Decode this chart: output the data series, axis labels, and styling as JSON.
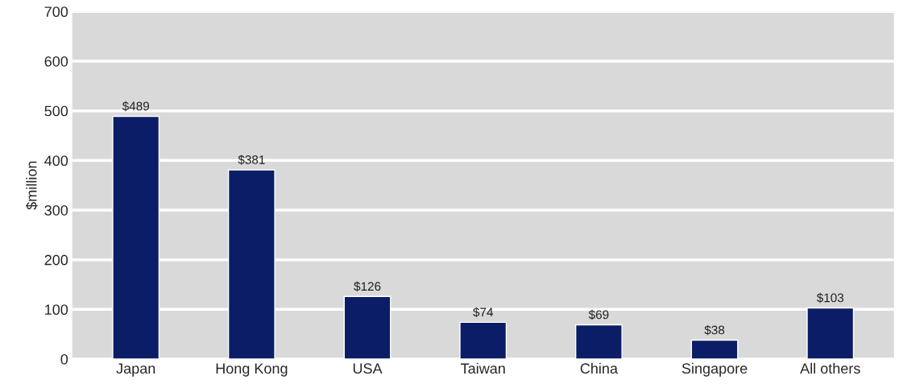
{
  "chart_data": {
    "type": "bar",
    "ylabel": "$million",
    "categories": [
      "Japan",
      "Hong Kong",
      "USA",
      "Taiwan",
      "China",
      "Singapore",
      "All others"
    ],
    "values": [
      489,
      381,
      126,
      74,
      69,
      38,
      103
    ],
    "value_labels": [
      "$489",
      "$381",
      "$126",
      "$74",
      "$69",
      "$38",
      "$103"
    ],
    "color": "#0b1d66",
    "ylim": [
      0,
      700
    ],
    "yticks": [
      0,
      100,
      200,
      300,
      400,
      500,
      600,
      700
    ],
    "grid": "y",
    "legend": false
  }
}
